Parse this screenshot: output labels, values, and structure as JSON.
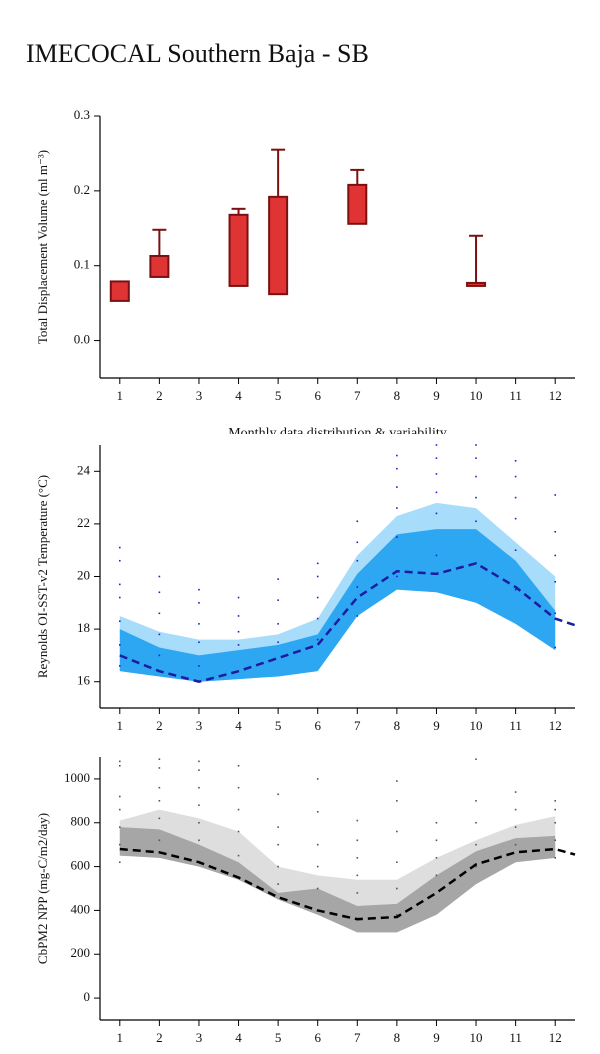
{
  "title": "IMECOCAL Southern Baja - SB",
  "chart_data": [
    {
      "type": "box",
      "ylabel": "Total Displacement Volume (ml m⁻³)",
      "xlabel": "Monthly data distribution & variability",
      "xlim": [
        0.5,
        12.5
      ],
      "xticks": [
        1,
        2,
        3,
        4,
        5,
        6,
        7,
        8,
        9,
        10,
        11,
        12
      ],
      "ylim": [
        -0.05,
        0.3
      ],
      "yticks": [
        {
          "value": 0,
          "label": "0.0"
        },
        0.1,
        0.2,
        0.3
      ],
      "color": "#e03434",
      "edge_color": "#7a1010",
      "x": [
        1,
        2,
        4,
        5,
        7,
        10
      ],
      "low": [
        0.053,
        0.085,
        0.073,
        0.062,
        0.156,
        0.073
      ],
      "high": [
        0.079,
        0.113,
        0.168,
        0.192,
        0.208,
        0.077
      ],
      "whisker": [
        null,
        0.148,
        0.176,
        0.255,
        0.228,
        0.14
      ]
    },
    {
      "type": "band",
      "ylabel": "Reynolds OI-SST-v2 Temperature (°C)",
      "xlim": [
        0.5,
        12.5
      ],
      "xticks": [
        1,
        2,
        3,
        4,
        5,
        6,
        7,
        8,
        9,
        10,
        11,
        12
      ],
      "ylim": [
        15,
        25
      ],
      "yticks": [
        16,
        18,
        20,
        22,
        24
      ],
      "x": [
        1,
        2,
        3,
        4,
        5,
        6,
        7,
        8,
        9,
        10,
        11,
        12,
        12.5
      ],
      "bands": [
        {
          "color": "#a8dcfb",
          "low": [
            16.4,
            16.2,
            16.0,
            16.1,
            16.2,
            16.4,
            18.5,
            19.5,
            19.4,
            19.0,
            18.2,
            17.2,
            null
          ],
          "high": [
            18.5,
            17.9,
            17.6,
            17.6,
            17.8,
            18.4,
            20.8,
            22.3,
            22.8,
            22.6,
            21.3,
            20.0,
            null
          ]
        },
        {
          "color": "#2ea7f2",
          "low": [
            16.4,
            16.2,
            16.0,
            16.1,
            16.2,
            16.4,
            18.5,
            19.5,
            19.4,
            19.0,
            18.2,
            17.2,
            null
          ],
          "high": [
            18.0,
            17.3,
            17.0,
            17.2,
            17.4,
            17.8,
            20.1,
            21.6,
            21.8,
            21.8,
            20.6,
            18.7,
            null
          ]
        }
      ],
      "line": {
        "color": "#1c1ca0",
        "line_style": "dashed",
        "values": [
          17.0,
          16.4,
          16.0,
          16.4,
          16.9,
          17.4,
          19.2,
          20.2,
          20.1,
          20.5,
          19.6,
          18.4,
          18.15
        ]
      },
      "points": {
        "color": "#2020d0",
        "groups": [
          {
            "x": 1,
            "values": [
              16.6,
              17.4,
              18.3,
              19.2,
              19.7,
              20.6,
              21.1
            ]
          },
          {
            "x": 2,
            "values": [
              17.0,
              17.8,
              18.6,
              19.4,
              20.0
            ]
          },
          {
            "x": 3,
            "values": [
              16.6,
              17.5,
              18.2,
              19.0,
              19.5
            ]
          },
          {
            "x": 4,
            "values": [
              17.4,
              17.9,
              18.5,
              19.2
            ]
          },
          {
            "x": 5,
            "values": [
              17.5,
              18.2,
              19.1,
              19.9
            ]
          },
          {
            "x": 6,
            "values": [
              17.6,
              18.4,
              19.2,
              20.0,
              20.5
            ]
          },
          {
            "x": 7,
            "values": [
              18.5,
              19.6,
              20.6,
              21.3,
              22.1
            ]
          },
          {
            "x": 8,
            "values": [
              20.0,
              21.5,
              22.6,
              23.4,
              24.1,
              24.6
            ]
          },
          {
            "x": 9,
            "values": [
              20.8,
              22.4,
              23.2,
              23.9,
              24.5,
              25.0
            ]
          },
          {
            "x": 10,
            "values": [
              20.5,
              22.1,
              23.0,
              23.8,
              24.5,
              25.0
            ]
          },
          {
            "x": 11,
            "values": [
              19.5,
              21.0,
              22.2,
              23.0,
              23.8,
              24.4
            ]
          },
          {
            "x": 12,
            "values": [
              17.3,
              18.6,
              19.8,
              20.8,
              21.7,
              23.1
            ]
          }
        ]
      }
    },
    {
      "type": "band",
      "ylabel": "CbPM2 NPP (mg-C/m2/day)",
      "xlim": [
        0.5,
        12.5
      ],
      "xticks": [
        1,
        2,
        3,
        4,
        5,
        6,
        7,
        8,
        9,
        10,
        11,
        12
      ],
      "ylim": [
        -100,
        1100
      ],
      "yticks": [
        0,
        200,
        400,
        600,
        800,
        1000
      ],
      "x": [
        1,
        2,
        3,
        4,
        5,
        6,
        7,
        8,
        9,
        10,
        11,
        12,
        12.5
      ],
      "bands": [
        {
          "color": "#dedede",
          "low": [
            650,
            640,
            600,
            540,
            450,
            380,
            300,
            300,
            380,
            520,
            620,
            640,
            null
          ],
          "high": [
            810,
            860,
            820,
            760,
            600,
            560,
            540,
            540,
            640,
            720,
            790,
            830,
            null
          ]
        },
        {
          "color": "#a6a6a6",
          "low": [
            650,
            640,
            600,
            540,
            450,
            380,
            300,
            300,
            380,
            520,
            620,
            640,
            null
          ],
          "high": [
            780,
            770,
            700,
            620,
            480,
            500,
            420,
            430,
            560,
            670,
            730,
            740,
            null
          ]
        }
      ],
      "line": {
        "color": "#000000",
        "line_style": "dashed",
        "values": [
          680,
          665,
          620,
          550,
          460,
          400,
          360,
          370,
          480,
          610,
          665,
          680,
          655
        ]
      },
      "points": {
        "color": "#555555",
        "groups": [
          {
            "x": 1,
            "values": [
              620,
              700,
              780,
              860,
              920,
              1060,
              1080
            ]
          },
          {
            "x": 2,
            "values": [
              720,
              820,
              900,
              960,
              1050,
              1090
            ]
          },
          {
            "x": 3,
            "values": [
              720,
              800,
              880,
              960,
              1040,
              1080
            ]
          },
          {
            "x": 4,
            "values": [
              550,
              650,
              760,
              860,
              960,
              1060
            ]
          },
          {
            "x": 5,
            "values": [
              520,
              600,
              700,
              780,
              930
            ]
          },
          {
            "x": 6,
            "values": [
              500,
              600,
              700,
              850,
              1000
            ]
          },
          {
            "x": 7,
            "values": [
              480,
              560,
              640,
              720,
              810
            ]
          },
          {
            "x": 8,
            "values": [
              380,
              500,
              620,
              760,
              900,
              990
            ]
          },
          {
            "x": 9,
            "values": [
              560,
              640,
              720,
              800
            ]
          },
          {
            "x": 10,
            "values": [
              600,
              700,
              800,
              900,
              1090
            ]
          },
          {
            "x": 11,
            "values": [
              700,
              780,
              860,
              940
            ]
          },
          {
            "x": 12,
            "values": [
              640,
              720,
              800,
              860,
              900
            ]
          }
        ]
      }
    }
  ]
}
